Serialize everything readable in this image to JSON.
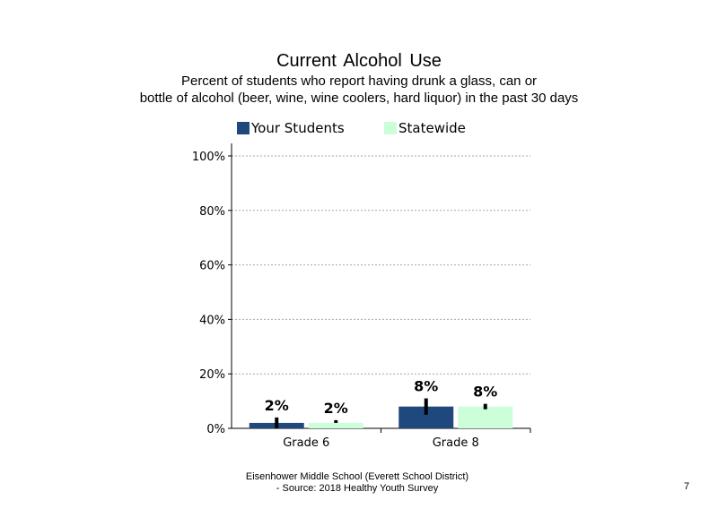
{
  "chart_data": {
    "type": "bar",
    "title": "Current  Alcohol Use",
    "subtitle_lines": [
      "Percent of students who report having drunk a glass, can or",
      "bottle  of alcohol (beer, wine, wine coolers, hard liquor)  in the past 30 days"
    ],
    "categories": [
      "Grade 6",
      "Grade 8"
    ],
    "series": [
      {
        "name": "Your Students",
        "color": "#1f497d",
        "values": [
          2,
          8
        ],
        "error": [
          [
            0,
            4
          ],
          [
            5,
            11
          ]
        ],
        "labels": [
          "2%",
          "8%"
        ]
      },
      {
        "name": "Statewide",
        "color": "#ccffd9",
        "values": [
          2,
          8
        ],
        "error": [
          [
            2,
            3
          ],
          [
            7,
            9
          ]
        ],
        "labels": [
          "2%",
          "8%"
        ]
      }
    ],
    "yticks": [
      "0%",
      "20%",
      "40%",
      "60%",
      "80%",
      "100%"
    ],
    "ylim": [
      0,
      100
    ],
    "grid": true,
    "legend_position": "top"
  },
  "footer": {
    "line1": "Eisenhower Middle School (Everett School District)",
    "line2": "- Source: 2018 Healthy  Youth Survey"
  },
  "page_number": "7"
}
